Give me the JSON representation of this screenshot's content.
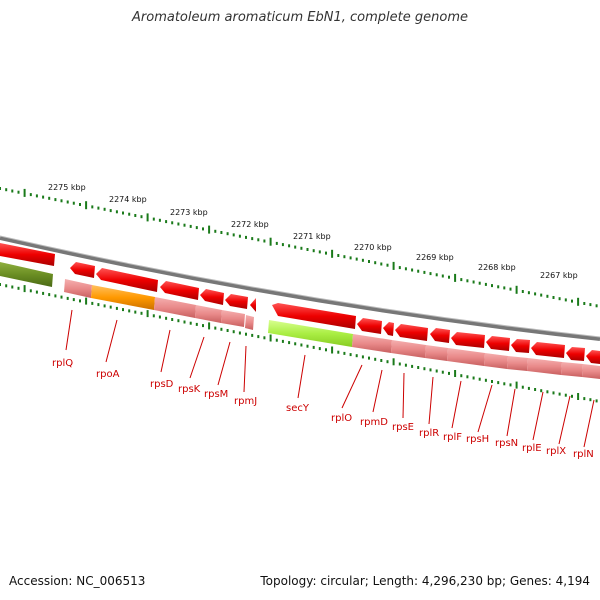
{
  "map": {
    "title": "Aromatoleum aromaticum EbN1, complete genome",
    "accession": "Accession: NC_006513",
    "summary": "Topology: circular; Length: 4,296,230 bp; Genes: 4,194"
  },
  "ruler": {
    "labels": [
      "2275 kbp",
      "2274 kbp",
      "2273 kbp",
      "2272 kbp",
      "2271 kbp",
      "2270 kbp",
      "2269 kbp",
      "2268 kbp",
      "2267 kbp"
    ]
  },
  "genes": [
    {
      "name": "rplQ"
    },
    {
      "name": "rpoA"
    },
    {
      "name": "rpsD"
    },
    {
      "name": "rpsK"
    },
    {
      "name": "rpsM"
    },
    {
      "name": "rpmJ"
    },
    {
      "name": "secY"
    },
    {
      "name": "rplO"
    },
    {
      "name": "rpmD"
    },
    {
      "name": "rpsE"
    },
    {
      "name": "rplR"
    },
    {
      "name": "rplF"
    },
    {
      "name": "rpsH"
    },
    {
      "name": "rpsN"
    },
    {
      "name": "rplE"
    },
    {
      "name": "rplX"
    },
    {
      "name": "rplN"
    }
  ],
  "colors": {
    "backbone": "#8c8c8c",
    "ruler": "#1a7a1a",
    "gene_red": "#ee0000",
    "gene_pink": "#ee8888",
    "gene_orange": "#ff9900",
    "gene_lime": "#aaee44",
    "gene_olive": "#6b8e23",
    "label": "#cc0000"
  }
}
